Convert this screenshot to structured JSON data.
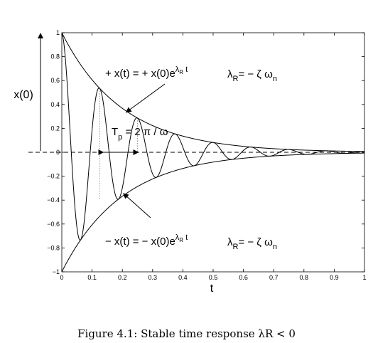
{
  "chart_data": {
    "type": "line",
    "title": "",
    "xlabel": "t",
    "ylabel": "x(0)",
    "xlim": [
      0,
      1
    ],
    "ylim": [
      -1,
      1
    ],
    "x_ticks": [
      "0",
      "0.1",
      "0.2",
      "0.3",
      "0.4",
      "0.5",
      "0.6",
      "0.7",
      "0.8",
      "0.9",
      "1"
    ],
    "y_ticks": [
      "1",
      "0.8",
      "0.6",
      "0.4",
      "0.2",
      "0",
      "−0.2",
      "−0.4",
      "−0.6",
      "−0.8",
      "−1"
    ],
    "grid": false,
    "series": [
      {
        "role": "upper-envelope",
        "equation": "x(t) = x(0) e^(−t/0.2)",
        "x0": 1,
        "time_constant": 0.2
      },
      {
        "role": "lower-envelope",
        "equation": "x(t) = −x(0) e^(−t/0.2)",
        "x0": -1,
        "time_constant": 0.2
      },
      {
        "role": "damped-oscillation",
        "equation": "x(t) = x(0) e^(−t/0.2) cos(2πt/0.125)",
        "x0": 1,
        "time_constant": 0.2,
        "period": 0.125
      }
    ],
    "annotations": {
      "upper_equation": "+ x(t) = + x(0)e",
      "lower_equation": "− x(t) = − x(0)e",
      "exp_base": "λ",
      "exp_sub": "R",
      "exp_t": " t",
      "lambda_upper": "λ",
      "lambda_lower": "λ",
      "lambda_sub": "R",
      "lambda_rhs": "= − ζ ω",
      "lambda_rhs_sub": "n",
      "period_main": "T",
      "period_sub": "p",
      "period_rhs": " =  2 π / ω",
      "period_markers": [
        0.125,
        0.25
      ]
    }
  },
  "caption": "Figure 4.1: Stable time response λR < 0"
}
